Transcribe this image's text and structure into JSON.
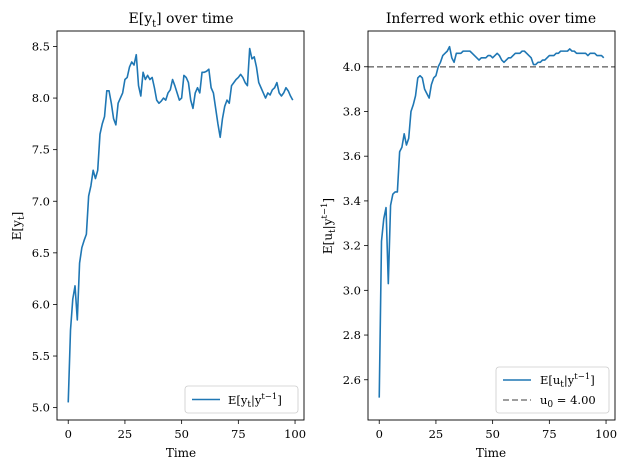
{
  "chart_data": [
    {
      "type": "line",
      "title": "E[y_t] over time",
      "title_parts": {
        "main": "E[y",
        "sub": "t",
        "end": "] over time"
      },
      "xlabel": "Time",
      "ylabel": "E[y_t]",
      "xlim": [
        -4.95,
        103.95
      ],
      "ylim": [
        4.88,
        8.65
      ],
      "xticks": [
        0,
        25,
        50,
        75,
        100
      ],
      "xtick_labels": [
        "0",
        "25",
        "50",
        "75",
        "100"
      ],
      "yticks": [
        5.0,
        5.5,
        6.0,
        6.5,
        7.0,
        7.5,
        8.0,
        8.5
      ],
      "ytick_labels": [
        "5.0",
        "5.5",
        "6.0",
        "6.5",
        "7.0",
        "7.5",
        "8.0",
        "8.5"
      ],
      "legend_position": "lower-right",
      "series": [
        {
          "name": "E[y_t | y^{t-1}]",
          "color": "#1f77b4",
          "style": "solid",
          "x": [
            0,
            1,
            2,
            3,
            4,
            5,
            6,
            7,
            8,
            9,
            10,
            11,
            12,
            13,
            14,
            15,
            16,
            17,
            18,
            19,
            20,
            21,
            22,
            23,
            24,
            25,
            26,
            27,
            28,
            29,
            30,
            31,
            32,
            33,
            34,
            35,
            36,
            37,
            38,
            39,
            40,
            41,
            42,
            43,
            44,
            45,
            46,
            47,
            48,
            49,
            50,
            51,
            52,
            53,
            54,
            55,
            56,
            57,
            58,
            59,
            60,
            61,
            62,
            63,
            64,
            65,
            66,
            67,
            68,
            69,
            70,
            71,
            72,
            73,
            74,
            75,
            76,
            77,
            78,
            79,
            80,
            81,
            82,
            83,
            84,
            85,
            86,
            87,
            88,
            89,
            90,
            91,
            92,
            93,
            94,
            95,
            96,
            97,
            98,
            99
          ],
          "values": [
            5.05,
            5.75,
            6.05,
            6.18,
            5.85,
            6.4,
            6.55,
            6.62,
            6.68,
            7.05,
            7.15,
            7.3,
            7.22,
            7.3,
            7.65,
            7.75,
            7.82,
            8.07,
            8.07,
            7.95,
            7.8,
            7.74,
            7.95,
            8.0,
            8.05,
            8.18,
            8.2,
            8.3,
            8.35,
            8.32,
            8.42,
            8.12,
            8.02,
            8.25,
            8.18,
            8.22,
            8.18,
            8.2,
            8.1,
            7.98,
            7.95,
            7.97,
            8.0,
            7.98,
            8.05,
            8.08,
            8.18,
            8.12,
            8.05,
            7.98,
            8.0,
            8.22,
            8.2,
            8.15,
            7.98,
            7.9,
            8.05,
            8.1,
            8.05,
            8.25,
            8.25,
            8.26,
            8.28,
            8.1,
            8.05,
            7.9,
            7.75,
            7.62,
            7.8,
            7.92,
            7.98,
            7.95,
            8.12,
            8.15,
            8.18,
            8.2,
            8.23,
            8.2,
            8.15,
            8.12,
            8.48,
            8.38,
            8.4,
            8.3,
            8.15,
            8.1,
            8.05,
            8.0,
            8.05,
            8.03,
            8.08,
            8.1,
            8.15,
            8.05,
            8.02,
            8.05,
            8.1,
            8.07,
            8.02,
            7.98
          ]
        }
      ]
    },
    {
      "type": "line",
      "title": "Inferred work ethic over time",
      "xlabel": "Time",
      "ylabel": "E[u_t | y^{t-1}]",
      "xlim": [
        -4.95,
        103.95
      ],
      "ylim": [
        2.42,
        4.16
      ],
      "xticks": [
        0,
        25,
        50,
        75,
        100
      ],
      "xtick_labels": [
        "0",
        "25",
        "50",
        "75",
        "100"
      ],
      "yticks": [
        2.6,
        2.8,
        3.0,
        3.2,
        3.4,
        3.6,
        3.8,
        4.0
      ],
      "ytick_labels": [
        "2.6",
        "2.8",
        "3.0",
        "3.2",
        "3.4",
        "3.6",
        "3.8",
        "4.0"
      ],
      "legend_position": "lower-right",
      "series": [
        {
          "name": "E[u_t | y^{t-1}]",
          "color": "#1f77b4",
          "style": "solid",
          "x": [
            0,
            1,
            2,
            3,
            4,
            5,
            6,
            7,
            8,
            9,
            10,
            11,
            12,
            13,
            14,
            15,
            16,
            17,
            18,
            19,
            20,
            21,
            22,
            23,
            24,
            25,
            26,
            27,
            28,
            29,
            30,
            31,
            32,
            33,
            34,
            35,
            36,
            37,
            38,
            39,
            40,
            41,
            42,
            43,
            44,
            45,
            46,
            47,
            48,
            49,
            50,
            51,
            52,
            53,
            54,
            55,
            56,
            57,
            58,
            59,
            60,
            61,
            62,
            63,
            64,
            65,
            66,
            67,
            68,
            69,
            70,
            71,
            72,
            73,
            74,
            75,
            76,
            77,
            78,
            79,
            80,
            81,
            82,
            83,
            84,
            85,
            86,
            87,
            88,
            89,
            90,
            91,
            92,
            93,
            94,
            95,
            96,
            97,
            98,
            99
          ],
          "values": [
            2.52,
            3.22,
            3.32,
            3.37,
            3.03,
            3.38,
            3.43,
            3.44,
            3.44,
            3.62,
            3.64,
            3.7,
            3.65,
            3.68,
            3.8,
            3.83,
            3.87,
            3.95,
            3.96,
            3.95,
            3.9,
            3.88,
            3.86,
            3.92,
            3.95,
            3.96,
            4.0,
            4.02,
            4.05,
            4.06,
            4.07,
            4.09,
            4.04,
            4.02,
            4.06,
            4.06,
            4.06,
            4.07,
            4.07,
            4.07,
            4.07,
            4.06,
            4.05,
            4.04,
            4.03,
            4.04,
            4.04,
            4.04,
            4.05,
            4.05,
            4.04,
            4.05,
            4.06,
            4.05,
            4.03,
            4.02,
            4.03,
            4.04,
            4.04,
            4.05,
            4.06,
            4.06,
            4.06,
            4.07,
            4.07,
            4.06,
            4.05,
            4.04,
            4.01,
            4.01,
            4.02,
            4.02,
            4.03,
            4.03,
            4.04,
            4.05,
            4.05,
            4.05,
            4.06,
            4.06,
            4.07,
            4.07,
            4.07,
            4.07,
            4.08,
            4.07,
            4.07,
            4.06,
            4.06,
            4.06,
            4.06,
            4.06,
            4.05,
            4.06,
            4.06,
            4.06,
            4.05,
            4.05,
            4.05,
            4.04
          ]
        },
        {
          "name": "u_0 = 4.00",
          "color": "#7f7f7f",
          "style": "dashed",
          "type": "hline",
          "y": 4.0
        }
      ]
    }
  ],
  "labels": {
    "left_title_main": "E[y",
    "left_title_sub": "t",
    "left_title_end": "] over time",
    "right_title": "Inferred work ethic over time",
    "xlabel": "Time",
    "left_ylabel": "E[y",
    "left_ylabel_sub": "t",
    "left_ylabel_end": "]",
    "right_ylabel_main": "E[u",
    "right_ylabel_sub": "t",
    "right_ylabel_mid": "|y",
    "right_ylabel_sup": "t−1",
    "right_ylabel_end": "]",
    "leg_left_main": "E[y",
    "leg_left_sub": "t",
    "leg_left_mid": "|y",
    "leg_left_sup": "t−1",
    "leg_left_end": "]",
    "leg_right1_main": "E[u",
    "leg_right1_sub": "t",
    "leg_right1_mid": "|y",
    "leg_right1_sup": "t−1",
    "leg_right1_end": "]",
    "leg_right2_main": "u",
    "leg_right2_sub": "0",
    "leg_right2_end": " = 4.00"
  }
}
